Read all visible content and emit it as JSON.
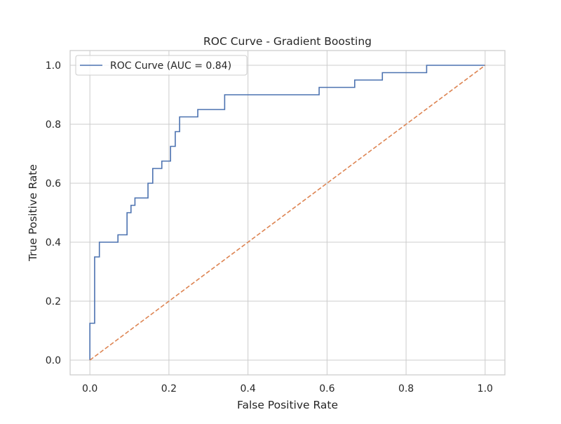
{
  "chart_data": {
    "type": "line",
    "title": "ROC Curve - Gradient Boosting",
    "xlabel": "False Positive Rate",
    "ylabel": "True Positive Rate",
    "xlim": [
      -0.05,
      1.05
    ],
    "ylim": [
      -0.05,
      1.05
    ],
    "x_ticks": [
      0.0,
      0.2,
      0.4,
      0.6,
      0.8,
      1.0
    ],
    "y_ticks": [
      0.0,
      0.2,
      0.4,
      0.6,
      0.8,
      1.0
    ],
    "x_tick_labels": [
      "0.0",
      "0.2",
      "0.4",
      "0.6",
      "0.8",
      "1.0"
    ],
    "y_tick_labels": [
      "0.0",
      "0.2",
      "0.4",
      "0.6",
      "0.8",
      "1.0"
    ],
    "grid": true,
    "legend_position": "top-left",
    "series": [
      {
        "name": "ROC Curve (AUC = 0.84)",
        "color": "#4c72b0",
        "line_style": "solid",
        "drawstyle": "steps",
        "x": [
          0.0,
          0.0,
          0.012,
          0.012,
          0.024,
          0.024,
          0.071,
          0.071,
          0.094,
          0.094,
          0.104,
          0.104,
          0.114,
          0.114,
          0.147,
          0.147,
          0.159,
          0.159,
          0.182,
          0.182,
          0.204,
          0.204,
          0.216,
          0.216,
          0.227,
          0.227,
          0.273,
          0.273,
          0.341,
          0.341,
          0.58,
          0.58,
          0.67,
          0.67,
          0.74,
          0.74,
          0.852,
          0.852,
          1.0
        ],
        "y": [
          0.0,
          0.125,
          0.125,
          0.35,
          0.35,
          0.4,
          0.4,
          0.425,
          0.425,
          0.5,
          0.5,
          0.525,
          0.525,
          0.55,
          0.55,
          0.6,
          0.6,
          0.65,
          0.65,
          0.675,
          0.675,
          0.725,
          0.725,
          0.775,
          0.775,
          0.825,
          0.825,
          0.85,
          0.85,
          0.9,
          0.9,
          0.925,
          0.925,
          0.95,
          0.95,
          0.975,
          0.975,
          1.0,
          1.0
        ]
      },
      {
        "name": "",
        "color": "#dd8452",
        "line_style": "dashed",
        "x": [
          0.0,
          1.0
        ],
        "y": [
          0.0,
          1.0
        ]
      }
    ]
  },
  "colors": {
    "grid": "#cccccc",
    "frame": "#cccccc",
    "legend_border": "#cccccc",
    "text": "#262626"
  }
}
